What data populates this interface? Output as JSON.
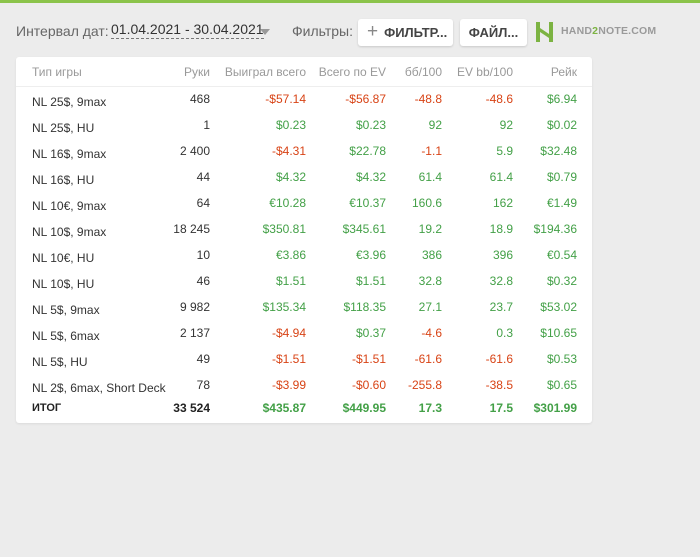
{
  "toolbar": {
    "date_label": "Интервал дат:",
    "date_range": "01.04.2021 - 30.04.2021",
    "filters_label": "Фильтры:",
    "filters_button": "ФИЛЬТР...",
    "files_button": "ФАЙЛ...",
    "logo_part1": "HAND",
    "logo_part2": "2",
    "logo_part3": "NOTE.COM",
    "accent_color": "#8bc34a"
  },
  "table": {
    "headers": [
      "Тип игры",
      "Руки",
      "Выиграл всего",
      "Всего по EV",
      "бб/100",
      "EV bb/100",
      "Рейк"
    ],
    "rows": [
      [
        "NL 25$, 9max",
        "468",
        "-$57.14",
        "-$56.87",
        "-48.8",
        "-48.6",
        "$6.94"
      ],
      [
        "NL 25$, HU",
        "1",
        "$0.23",
        "$0.23",
        "92",
        "92",
        "$0.02"
      ],
      [
        "NL 16$, 9max",
        "2 400",
        "-$4.31",
        "$22.78",
        "-1.1",
        "5.9",
        "$32.48"
      ],
      [
        "NL 16$, HU",
        "44",
        "$4.32",
        "$4.32",
        "61.4",
        "61.4",
        "$0.79"
      ],
      [
        "NL 10€, 9max",
        "64",
        "€10.28",
        "€10.37",
        "160.6",
        "162",
        "€1.49"
      ],
      [
        "NL 10$, 9max",
        "18 245",
        "$350.81",
        "$345.61",
        "19.2",
        "18.9",
        "$194.36"
      ],
      [
        "NL 10€, HU",
        "10",
        "€3.86",
        "€3.96",
        "386",
        "396",
        "€0.54"
      ],
      [
        "NL 10$, HU",
        "46",
        "$1.51",
        "$1.51",
        "32.8",
        "32.8",
        "$0.32"
      ],
      [
        "NL 5$, 9max",
        "9 982",
        "$135.34",
        "$118.35",
        "27.1",
        "23.7",
        "$53.02"
      ],
      [
        "NL 5$, 6max",
        "2 137",
        "-$4.94",
        "$0.37",
        "-4.6",
        "0.3",
        "$10.65"
      ],
      [
        "NL 5$, HU",
        "49",
        "-$1.51",
        "-$1.51",
        "-61.6",
        "-61.6",
        "$0.53"
      ],
      [
        "NL 2$, 6max, Short Deck",
        "78",
        "-$3.99",
        "-$0.60",
        "-255.8",
        "-38.5",
        "$0.65"
      ]
    ],
    "total": [
      "ИТОГ",
      "33 524",
      "$435.87",
      "$449.95",
      "17.3",
      "17.5",
      "$301.99"
    ],
    "positive_color": "#43a047",
    "negative_color": "#d84315"
  }
}
